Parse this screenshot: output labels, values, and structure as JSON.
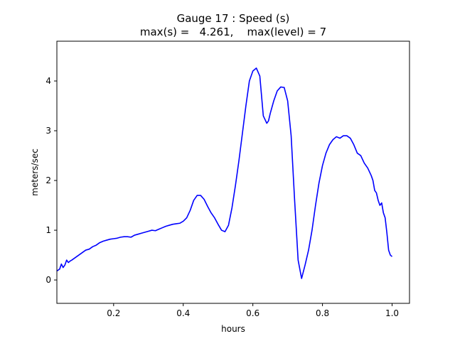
{
  "chart_data": {
    "type": "line",
    "title_line1": "Gauge 17 : Speed (s)",
    "title_line2": "max(s) =   4.261,    max(level) = 7",
    "xlabel": "hours",
    "ylabel": "meters/sec",
    "xlim": [
      0.037,
      1.05
    ],
    "ylim": [
      -0.47,
      4.8
    ],
    "xticks": [
      0.2,
      0.4,
      0.6,
      0.8,
      1.0
    ],
    "xtick_labels": [
      "0.2",
      "0.4",
      "0.6",
      "0.8",
      "1.0"
    ],
    "yticks": [
      0,
      1,
      2,
      3,
      4
    ],
    "ytick_labels": [
      "0",
      "1",
      "2",
      "3",
      "4"
    ],
    "grid": false,
    "series": [
      {
        "color": "#0000ff",
        "x": [
          0.037,
          0.045,
          0.05,
          0.055,
          0.06,
          0.065,
          0.07,
          0.075,
          0.08,
          0.09,
          0.1,
          0.11,
          0.12,
          0.13,
          0.14,
          0.15,
          0.16,
          0.17,
          0.18,
          0.19,
          0.2,
          0.21,
          0.22,
          0.23,
          0.24,
          0.25,
          0.26,
          0.27,
          0.28,
          0.29,
          0.3,
          0.31,
          0.32,
          0.33,
          0.34,
          0.35,
          0.36,
          0.37,
          0.38,
          0.39,
          0.4,
          0.41,
          0.42,
          0.43,
          0.44,
          0.45,
          0.46,
          0.47,
          0.48,
          0.49,
          0.5,
          0.51,
          0.52,
          0.53,
          0.54,
          0.55,
          0.56,
          0.57,
          0.58,
          0.59,
          0.6,
          0.61,
          0.62,
          0.625,
          0.63,
          0.64,
          0.645,
          0.65,
          0.66,
          0.67,
          0.68,
          0.69,
          0.7,
          0.71,
          0.72,
          0.73,
          0.74,
          0.75,
          0.76,
          0.77,
          0.78,
          0.79,
          0.8,
          0.81,
          0.82,
          0.83,
          0.84,
          0.85,
          0.86,
          0.87,
          0.88,
          0.89,
          0.9,
          0.91,
          0.92,
          0.93,
          0.94,
          0.945,
          0.95,
          0.955,
          0.96,
          0.965,
          0.97,
          0.975,
          0.98,
          0.985,
          0.99,
          0.995,
          1.0
        ],
        "y": [
          0.18,
          0.22,
          0.32,
          0.25,
          0.3,
          0.4,
          0.35,
          0.38,
          0.4,
          0.45,
          0.5,
          0.55,
          0.6,
          0.62,
          0.67,
          0.7,
          0.75,
          0.78,
          0.8,
          0.82,
          0.83,
          0.84,
          0.86,
          0.87,
          0.87,
          0.86,
          0.9,
          0.92,
          0.94,
          0.96,
          0.98,
          1.0,
          0.99,
          1.02,
          1.05,
          1.08,
          1.1,
          1.12,
          1.13,
          1.14,
          1.18,
          1.25,
          1.4,
          1.6,
          1.7,
          1.7,
          1.62,
          1.48,
          1.35,
          1.25,
          1.12,
          1.0,
          0.97,
          1.1,
          1.45,
          1.9,
          2.4,
          2.95,
          3.5,
          4.0,
          4.2,
          4.26,
          4.1,
          3.7,
          3.3,
          3.15,
          3.2,
          3.35,
          3.6,
          3.8,
          3.88,
          3.87,
          3.6,
          2.9,
          1.6,
          0.4,
          0.03,
          0.3,
          0.6,
          1.0,
          1.5,
          1.95,
          2.3,
          2.55,
          2.72,
          2.82,
          2.88,
          2.85,
          2.9,
          2.9,
          2.85,
          2.72,
          2.55,
          2.5,
          2.35,
          2.25,
          2.1,
          2.0,
          1.8,
          1.75,
          1.6,
          1.5,
          1.55,
          1.35,
          1.25,
          0.95,
          0.6,
          0.5,
          0.47
        ]
      }
    ]
  }
}
